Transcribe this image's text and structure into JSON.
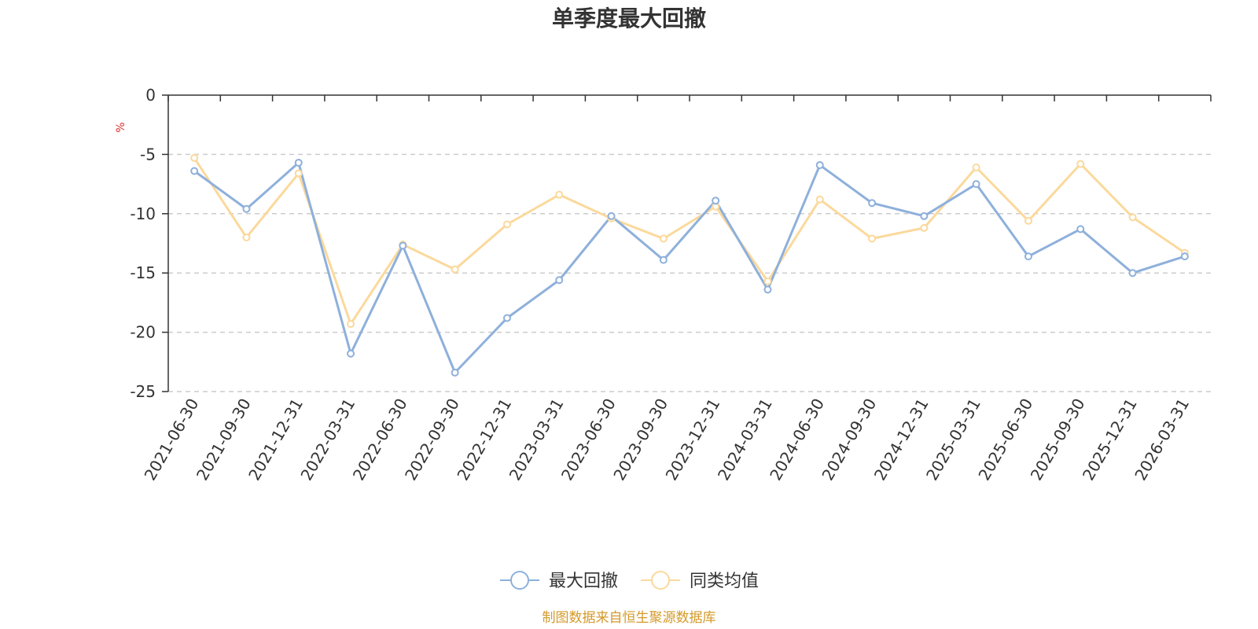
{
  "chart_data": {
    "type": "line",
    "title": "单季度最大回撤",
    "ylabel": "%",
    "ylim": [
      -25,
      0
    ],
    "yticks": [
      0,
      -5,
      -10,
      -15,
      -20,
      -25
    ],
    "grid": true,
    "legend_position": "bottom",
    "categories": [
      "2021-06-30",
      "2021-09-30",
      "2021-12-31",
      "2022-03-31",
      "2022-06-30",
      "2022-09-30",
      "2022-12-31",
      "2023-03-31",
      "2023-06-30",
      "2023-09-30",
      "2023-12-31",
      "2024-03-31",
      "2024-06-30",
      "2024-09-30",
      "2024-12-31",
      "2025-03-31",
      "2025-06-30",
      "2025-09-30",
      "2025-12-31",
      "2026-03-31"
    ],
    "series": [
      {
        "name": "最大回撤",
        "color": "#8eb0db",
        "values": [
          -6.4,
          -9.6,
          -5.7,
          -21.8,
          -12.7,
          -23.4,
          -18.8,
          -15.6,
          -10.2,
          -13.9,
          -8.9,
          -16.4,
          -5.9,
          -9.1,
          -10.2,
          -7.5,
          -13.6,
          -11.3,
          -15.0,
          -13.6
        ]
      },
      {
        "name": "同类均值",
        "color": "#fbd99c",
        "values": [
          -5.3,
          -12.0,
          -6.6,
          -19.3,
          -12.6,
          -14.7,
          -10.9,
          -8.4,
          -10.4,
          -12.1,
          -9.4,
          -15.7,
          -8.8,
          -12.1,
          -11.2,
          -6.1,
          -10.6,
          -5.8,
          -10.3,
          -13.3
        ]
      }
    ]
  },
  "footer": {
    "source": "制图数据来自恒生聚源数据库"
  }
}
